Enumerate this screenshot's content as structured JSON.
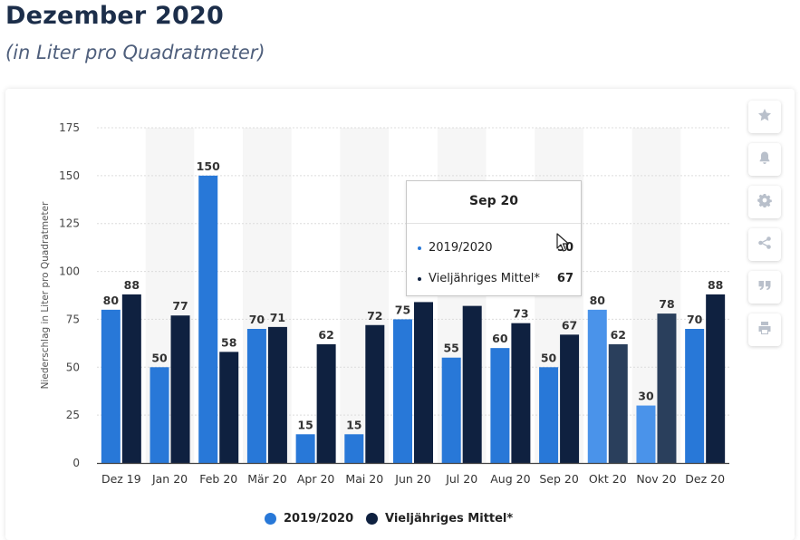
{
  "title": "Dezember 2020",
  "subtitle": "(in Liter pro Quadratmeter)",
  "colors": {
    "series1": "#2878d8",
    "series2": "#0f2140",
    "series1_highlight": "#4a93ea",
    "series2_highlight": "#2a3f5c",
    "band": "#f6f6f6",
    "grid": "#dcdcdc"
  },
  "tools": [
    {
      "icon": "star-icon"
    },
    {
      "icon": "bell-icon"
    },
    {
      "icon": "gear-icon"
    },
    {
      "icon": "share-icon"
    },
    {
      "icon": "quote-icon"
    },
    {
      "icon": "print-icon"
    }
  ],
  "tooltip": {
    "title": "Sep 20",
    "rows": [
      {
        "label": "2019/2020",
        "value": "50"
      },
      {
        "label": "Vieljähriges Mittel*",
        "value": "67"
      }
    ]
  },
  "legend": [
    {
      "label": "2019/2020"
    },
    {
      "label": "Vieljähriges Mittel*"
    }
  ],
  "chart_data": {
    "type": "bar",
    "ylabel": "Niederschlag in Liter pro Quadratmeter",
    "xlabel": "",
    "ylim": [
      0,
      175
    ],
    "yticks": [
      0,
      25,
      50,
      75,
      100,
      125,
      150,
      175
    ],
    "grid": true,
    "legend_position": "bottom-center",
    "categories": [
      "Dez 19",
      "Jan 20",
      "Feb 20",
      "Mär 20",
      "Apr 20",
      "Mai 20",
      "Jun 20",
      "Jul 20",
      "Aug 20",
      "Sep 20",
      "Okt 20",
      "Nov 20",
      "Dez 20"
    ],
    "series": [
      {
        "name": "2019/2020",
        "values": [
          80,
          50,
          150,
          70,
          15,
          15,
          75,
          55,
          60,
          50,
          80,
          30,
          70
        ]
      },
      {
        "name": "Vieljähriges Mittel*",
        "values": [
          88,
          77,
          58,
          71,
          62,
          72,
          84,
          82,
          73,
          67,
          62,
          78,
          88
        ]
      }
    ],
    "data_labels_visible": [
      [
        true,
        true,
        true,
        true,
        true,
        true,
        true,
        true,
        true,
        true,
        true,
        true,
        true
      ],
      [
        true,
        true,
        true,
        true,
        true,
        true,
        false,
        false,
        true,
        true,
        true,
        true,
        true
      ]
    ],
    "highlighted_categories": [
      "Okt 20",
      "Nov 20"
    ]
  }
}
